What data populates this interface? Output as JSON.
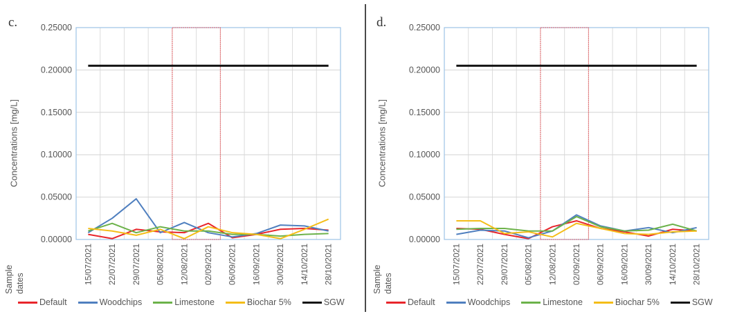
{
  "colors": {
    "Default": "#e8252b",
    "Woodchips": "#4f7fbf",
    "Limestone": "#6cb24a",
    "Biochar 5%": "#f4bd18",
    "SGW": "#111111"
  },
  "shared": {
    "ylabel": "Concentrations [mg/L]",
    "xlabel_line1": "Sample",
    "xlabel_line2": "dates",
    "legend": [
      "Default",
      "Woodchips",
      "Limestone",
      "Biochar 5%",
      "SGW"
    ]
  },
  "chart_data": [
    {
      "panel": "c.",
      "type": "line",
      "categories": [
        "15/07/2021",
        "22/07/2021",
        "29/07/2021",
        "05/08/2021",
        "12/08/2021",
        "02/09/2021",
        "06/09/2021",
        "16/09/2021",
        "30/09/2021",
        "14/10/2021",
        "28/10/2021"
      ],
      "ylim": [
        0,
        0.25
      ],
      "yticks": [
        "0.00000",
        "0.05000",
        "0.10000",
        "0.15000",
        "0.20000",
        "0.25000"
      ],
      "highlight_range": [
        4,
        5
      ],
      "series": [
        {
          "name": "Default",
          "values": [
            0.006,
            0.001,
            0.012,
            0.009,
            0.008,
            0.019,
            0.002,
            0.006,
            0.012,
            0.013,
            0.011
          ]
        },
        {
          "name": "Woodchips",
          "values": [
            0.008,
            0.025,
            0.048,
            0.008,
            0.02,
            0.008,
            0.003,
            0.007,
            0.017,
            0.016,
            0.01
          ]
        },
        {
          "name": "Limestone",
          "values": [
            0.01,
            0.019,
            0.008,
            0.015,
            0.01,
            0.01,
            0.006,
            0.006,
            0.004,
            0.006,
            0.007
          ]
        },
        {
          "name": "Biochar 5%",
          "values": [
            0.013,
            0.01,
            0.005,
            0.012,
            0.001,
            0.015,
            0.008,
            0.006,
            0.001,
            0.012,
            0.024
          ]
        },
        {
          "name": "SGW",
          "values": [
            0.205,
            0.205,
            0.205,
            0.205,
            0.205,
            0.205,
            0.205,
            0.205,
            0.205,
            0.205,
            0.205
          ]
        }
      ]
    },
    {
      "panel": "d.",
      "type": "line",
      "categories": [
        "15/07/2021",
        "22/07/2021",
        "29/07/2021",
        "05/08/2021",
        "12/08/2021",
        "02/09/2021",
        "06/09/2021",
        "16/09/2021",
        "30/09/2021",
        "14/10/2021",
        "28/10/2021"
      ],
      "ylim": [
        0,
        0.25
      ],
      "yticks": [
        "0.00000",
        "0.05000",
        "0.10000",
        "0.15000",
        "0.20000",
        "0.25000"
      ],
      "highlight_range": [
        4,
        5
      ],
      "series": [
        {
          "name": "Default",
          "values": [
            0.013,
            0.012,
            0.006,
            0.001,
            0.015,
            0.022,
            0.013,
            0.009,
            0.004,
            0.012,
            0.01
          ]
        },
        {
          "name": "Woodchips",
          "values": [
            0.006,
            0.011,
            0.01,
            0.002,
            0.01,
            0.029,
            0.016,
            0.01,
            0.014,
            0.008,
            0.014
          ]
        },
        {
          "name": "Limestone",
          "values": [
            0.012,
            0.013,
            0.013,
            0.01,
            0.01,
            0.027,
            0.015,
            0.01,
            0.011,
            0.018,
            0.01
          ]
        },
        {
          "name": "Biochar 5%",
          "values": [
            0.022,
            0.022,
            0.007,
            0.009,
            0.003,
            0.019,
            0.013,
            0.007,
            0.006,
            0.009,
            0.01
          ]
        },
        {
          "name": "SGW",
          "values": [
            0.205,
            0.205,
            0.205,
            0.205,
            0.205,
            0.205,
            0.205,
            0.205,
            0.205,
            0.205,
            0.205
          ]
        }
      ]
    }
  ]
}
